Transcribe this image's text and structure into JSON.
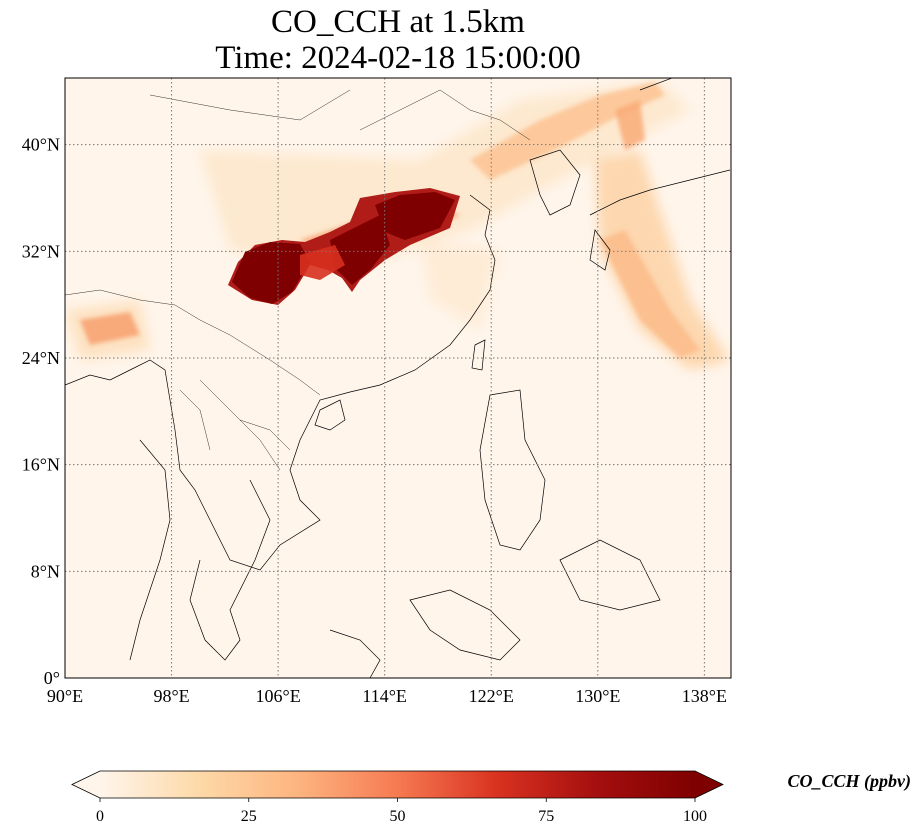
{
  "title": {
    "line1": "CO_CCH at 1.5km",
    "line2": "Time: 2024-02-18 15:00:00"
  },
  "map": {
    "extent_lon": [
      90,
      140
    ],
    "extent_lat": [
      0,
      45
    ],
    "lon_ticks": [
      {
        "value": 90,
        "label": "90°E"
      },
      {
        "value": 98,
        "label": "98°E"
      },
      {
        "value": 106,
        "label": "106°E"
      },
      {
        "value": 114,
        "label": "114°E"
      },
      {
        "value": 122,
        "label": "122°E"
      },
      {
        "value": 130,
        "label": "130°E"
      },
      {
        "value": 138,
        "label": "138°E"
      }
    ],
    "lat_ticks": [
      {
        "value": 0,
        "label": "0°"
      },
      {
        "value": 8,
        "label": "8°N"
      },
      {
        "value": 16,
        "label": "16°N"
      },
      {
        "value": 24,
        "label": "24°N"
      },
      {
        "value": 32,
        "label": "32°N"
      },
      {
        "value": 40,
        "label": "40°N"
      }
    ],
    "gridlines": true,
    "background_color": "#fff5eb",
    "colormap": "OrRd"
  },
  "colorbar": {
    "label": "CO_CCH (ppbv)",
    "min": 0,
    "max": 100,
    "extend": "both",
    "ticks": [
      {
        "value": 0,
        "label": "0"
      },
      {
        "value": 25,
        "label": "25"
      },
      {
        "value": 50,
        "label": "50"
      },
      {
        "value": 75,
        "label": "75"
      },
      {
        "value": 100,
        "label": "100"
      }
    ],
    "colors": [
      "#fff5eb",
      "#fdd9a8",
      "#fdb47f",
      "#f67a52",
      "#d93220",
      "#a50f0f",
      "#7f0000"
    ]
  }
}
